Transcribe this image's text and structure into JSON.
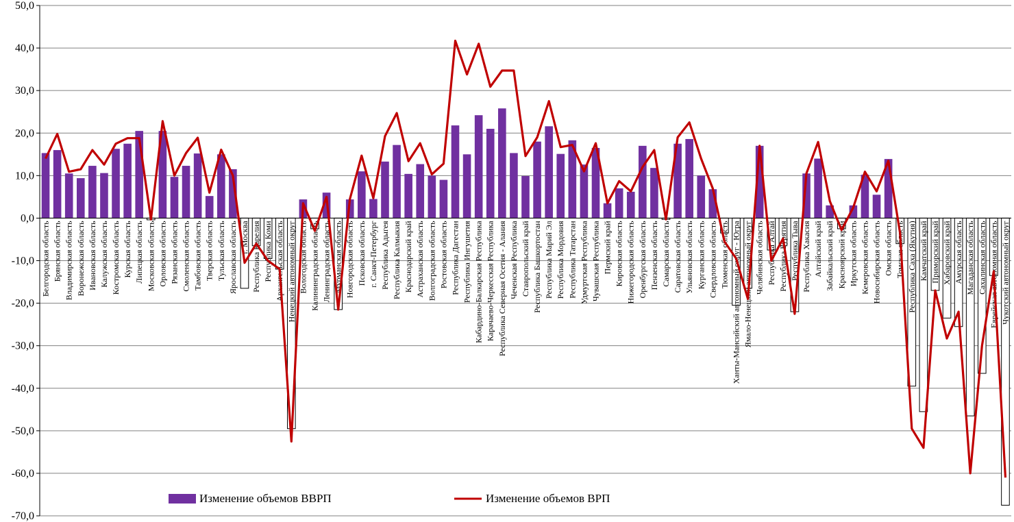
{
  "chart_data": {
    "type": "bar",
    "title": "",
    "xlabel": "",
    "ylabel": "",
    "ylim": [
      -70,
      50
    ],
    "yticks": [
      "50,0",
      "40,0",
      "30,0",
      "20,0",
      "10,0",
      "0,0",
      "-10,0",
      "-20,0",
      "-30,0",
      "-40,0",
      "-50,0",
      "-60,0",
      "-70,0"
    ],
    "grid": true,
    "legend_position": "bottom",
    "colors": {
      "bar": "#7030a0",
      "line": "#c00000",
      "negative_bar_fill": "#ffffff",
      "negative_bar_stroke": "#000000",
      "grid": "#808080"
    },
    "categories": [
      "Белгородская область",
      "Брянская область",
      "Владимирская область",
      "Воронежская область",
      "Ивановская область",
      "Калужская область",
      "Костромская область",
      "Курская область",
      "Липецкая область",
      "Московская область",
      "Орловская область",
      "Рязанская область",
      "Смоленская область",
      "Тамбовская область",
      "Тверская область",
      "Тульская область",
      "Ярославская область",
      "г. Москва",
      "Республика Карелия",
      "Республика Коми",
      "Архангельская область",
      "Ненецкий автономный округ",
      "Вологодская область",
      "Калининградская область",
      "Ленинградская область",
      "Мурманская область",
      "Новгородская область",
      "Псковская область",
      "г. Санкт-Петербург",
      "Республика Адыгея",
      "Республика Калмыкия",
      "Краснодарский край",
      "Астраханская область",
      "Волгоградская область",
      "Ростовская область",
      "Республика Дагестан",
      "Республика Ингушетия",
      "Кабардино-Балкарская Республика",
      "Карачаево-Черкесская Республика",
      "Республика Северная Осетия - Алания",
      "Чеченская Республика",
      "Ставропольский край",
      "Республика Башкортостан",
      "Республика Марий Эл",
      "Республика Мордовия",
      "Республика Татарстан",
      "Удмуртская Республика",
      "Чувашская Республика",
      "Пермский край",
      "Кировская область",
      "Нижегородская область",
      "Оренбургская область",
      "Пензенская область",
      "Самарская область",
      "Саратовская область",
      "Ульяновская область",
      "Курганская область",
      "Свердловская область",
      "Тюменская область",
      "Ханты-Мансийский автономный округ - Югра",
      "Ямало-Ненецкий автономный округ",
      "Челябинская область",
      "Республика Алтай",
      "Республика Бурятия",
      "Республика Тыва",
      "Республика Хакасия",
      "Алтайский край",
      "Забайкальский край",
      "Красноярский край",
      "Иркутская область",
      "Кемеровская область",
      "Новосибирская область",
      "Омская область",
      "Томская область",
      "Республика Саха (Якутия)",
      "Камчатский край",
      "Приморский край",
      "Хабаровский край",
      "Амурская область",
      "Магаданская область",
      "Сахалинская область",
      "Еврейская автономная область",
      "Чукотский автономный округ"
    ],
    "series": [
      {
        "name": "Изменение объемов ВВРП",
        "type": "bar",
        "values": [
          15.3,
          16.0,
          10.5,
          9.4,
          12.3,
          10.6,
          16.3,
          17.5,
          20.5,
          -0.4,
          20.5,
          9.7,
          12.3,
          15.2,
          5.2,
          15.0,
          11.5,
          -16.5,
          -6.5,
          -9.5,
          -12.0,
          -49.5,
          4.4,
          -2.5,
          6.0,
          -21.5,
          4.4,
          11.0,
          4.5,
          13.3,
          17.2,
          10.4,
          12.7,
          10.0,
          9.0,
          21.8,
          15.0,
          24.2,
          21.0,
          25.8,
          15.3,
          9.9,
          18.0,
          21.6,
          15.1,
          18.3,
          12.6,
          16.5,
          3.5,
          7.0,
          6.2,
          17.0,
          11.8,
          -0.3,
          17.5,
          18.6,
          10.0,
          6.8,
          -3.5,
          -20.5,
          -16.5,
          17.0,
          -7.5,
          -6.5,
          -22.0,
          10.5,
          14.0,
          3.0,
          -2.5,
          3.0,
          10.2,
          5.5,
          13.9,
          -6.0,
          -39.5,
          -45.5,
          -17.0,
          -23.5,
          -25.5,
          -46.5,
          -36.5,
          -13.5,
          -67.5
        ]
      },
      {
        "name": "Изменение объемов ВРП",
        "type": "line",
        "values": [
          14.0,
          19.8,
          10.9,
          11.5,
          16.0,
          12.6,
          17.5,
          18.8,
          18.8,
          -0.3,
          22.8,
          10.0,
          15.3,
          18.9,
          6.0,
          16.1,
          10.0,
          -10.5,
          -6.0,
          -10.0,
          -12.0,
          -52.5,
          3.5,
          -3.0,
          5.0,
          -21.5,
          4.5,
          14.7,
          4.7,
          19.3,
          24.7,
          13.4,
          17.6,
          10.3,
          12.8,
          41.7,
          33.8,
          41.0,
          30.9,
          34.7,
          34.7,
          14.6,
          19.0,
          27.5,
          16.7,
          17.2,
          11.0,
          17.6,
          3.5,
          8.7,
          6.3,
          12.0,
          16.0,
          -0.3,
          19.0,
          22.5,
          14.0,
          7.0,
          -5.5,
          -9.5,
          -19.0,
          17.0,
          -10.0,
          -4.8,
          -22.5,
          10.5,
          17.9,
          4.0,
          -2.8,
          2.5,
          10.9,
          6.3,
          13.5,
          -3.5,
          -49.5,
          -54.0,
          -17.0,
          -28.3,
          -22.0,
          -60.0,
          -30.0,
          -12.5,
          -61.0
        ]
      }
    ]
  },
  "legend": {
    "bar_label": "Изменение объемов ВВРП",
    "line_label": "Изменение объемов ВРП"
  }
}
